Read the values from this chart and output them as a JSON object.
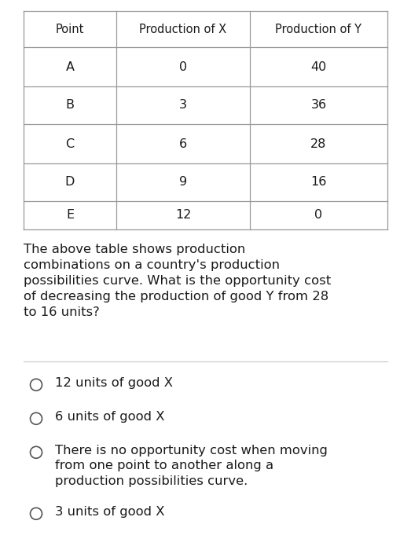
{
  "table_headers": [
    "Point",
    "Production of X",
    "Production of Y"
  ],
  "table_rows": [
    [
      "A",
      "0",
      "40"
    ],
    [
      "B",
      "3",
      "36"
    ],
    [
      "C",
      "6",
      "28"
    ],
    [
      "D",
      "9",
      "16"
    ],
    [
      "E",
      "12",
      "0"
    ]
  ],
  "question_text": "The above table shows production\ncombinations on a country's production\npossibilities curve. What is the opportunity cost\nof decreasing the production of good Y from 28\nto 16 units?",
  "choices": [
    [
      "12 units of good X"
    ],
    [
      "6 units of good X"
    ],
    [
      "There is no opportunity cost when moving",
      "from one point to another along a",
      "production possibilities curve."
    ],
    [
      "3 units of good X"
    ]
  ],
  "bg_color": "#ffffff",
  "text_color": "#1a1a1a",
  "table_border_color": "#999999",
  "header_fontsize": 10.5,
  "cell_fontsize": 11.5,
  "question_fontsize": 11.8,
  "choice_fontsize": 11.8,
  "divider_color": "#cccccc"
}
